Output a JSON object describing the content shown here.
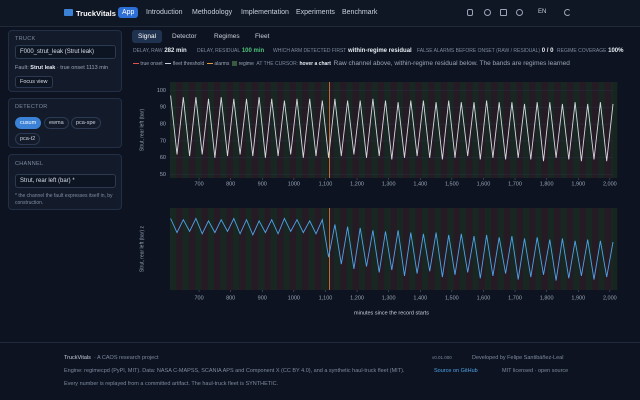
{
  "header": {
    "brand": "TruckVitals",
    "nav": [
      "App",
      "Introduction",
      "Methodology",
      "Implementation",
      "Experiments",
      "Benchmark"
    ],
    "lang": "EN"
  },
  "sidebar": {
    "truck": {
      "heading": "TRUCK",
      "select": "F000_strut_leak (Strut leak)",
      "fault_label": "Fault:",
      "fault_name": "Strut leak",
      "fault_rest": "· true onset 1113 min",
      "button": "Focus view"
    },
    "detector": {
      "heading": "DETECTOR",
      "options": [
        "cusum",
        "ewma",
        "pca-spe",
        "pca-t2"
      ]
    },
    "channel": {
      "heading": "CHANNEL",
      "select": "Strut, rear left (bar) *",
      "note": "* the channel the fault expresses itself in, by construction."
    }
  },
  "tabs": [
    "Signal",
    "Detector",
    "Regimes",
    "Fleet"
  ],
  "stats": [
    {
      "label": "DELAY, RAW",
      "value": "282 min"
    },
    {
      "label": "DELAY, RESIDUAL",
      "value": "100 min"
    },
    {
      "label": "WHICH ARM DETECTED FIRST",
      "value": "within-regime residual"
    },
    {
      "label": "FALSE ALARMS BEFORE ONSET (RAW / RESIDUAL)",
      "value": "0 / 0"
    },
    {
      "label": "REGIME COVERAGE",
      "value": "100%"
    }
  ],
  "legend": [
    "true onset",
    "fleet threshold",
    "alarms",
    "regime"
  ],
  "cursor": {
    "label": "AT THE CURSOR:",
    "value": "hover a chart"
  },
  "caption": "Raw channel above, within-regime residual below. The bands are regimes learned",
  "chart_data": [
    {
      "type": "line",
      "ylabel": "Strut, rear left (bar)",
      "color": "#d3d7de",
      "onset_x": 1113,
      "x": [
        610,
        630,
        650,
        670,
        690,
        710,
        730,
        750,
        770,
        790,
        810,
        830,
        850,
        870,
        890,
        910,
        930,
        950,
        970,
        990,
        1010,
        1030,
        1050,
        1070,
        1090,
        1110,
        1130,
        1150,
        1170,
        1190,
        1210,
        1230,
        1250,
        1270,
        1290,
        1310,
        1330,
        1350,
        1370,
        1390,
        1410,
        1430,
        1450,
        1470,
        1490,
        1510,
        1530,
        1550,
        1570,
        1590,
        1610,
        1630,
        1650,
        1670,
        1690,
        1710,
        1730,
        1750,
        1770,
        1790,
        1810,
        1830,
        1850,
        1870,
        1890,
        1910,
        1930,
        1950,
        1970,
        1990,
        2010
      ],
      "values": [
        97,
        62,
        96,
        61,
        96,
        62,
        95,
        60,
        96,
        61,
        95,
        62,
        95,
        61,
        96,
        60,
        95,
        61,
        94,
        62,
        95,
        60,
        95,
        61,
        94,
        60,
        95,
        61,
        94,
        62,
        94,
        60,
        95,
        61,
        94,
        59,
        93,
        60,
        94,
        61,
        94,
        60,
        93,
        59,
        94,
        60,
        93,
        61,
        93,
        59,
        94,
        60,
        93,
        59,
        93,
        60,
        92,
        59,
        93,
        58,
        93,
        60,
        92,
        59,
        93,
        58,
        92,
        59,
        93,
        58,
        92
      ],
      "xlim": [
        608,
        2010
      ],
      "ylim": [
        48,
        105
      ],
      "xticks": [
        700,
        800,
        900,
        1000,
        {
          "value": 1100,
          "label": "1,100"
        },
        {
          "value": 1200,
          "label": "1,200"
        },
        {
          "value": 1300,
          "label": "1,300"
        },
        {
          "value": 1400,
          "label": "1,400"
        },
        {
          "value": 1500,
          "label": "1,500"
        },
        {
          "value": 1600,
          "label": "1,600"
        },
        {
          "value": 1700,
          "label": "1,700"
        },
        {
          "value": 1800,
          "label": "1,800"
        },
        {
          "value": 1900,
          "label": "1,900"
        },
        {
          "value": 2000,
          "label": "2,000"
        }
      ],
      "yticks": [
        50,
        60,
        70,
        80,
        90,
        100
      ]
    },
    {
      "type": "line",
      "ylabel": "Strut, rear left (bar) z",
      "xlabel": "minutes since the record starts",
      "color": "#4ea3e8",
      "onset_x": 1113,
      "x": [
        610,
        630,
        650,
        670,
        690,
        710,
        730,
        750,
        770,
        790,
        810,
        830,
        850,
        870,
        890,
        910,
        930,
        950,
        970,
        990,
        1010,
        1030,
        1050,
        1070,
        1090,
        1110,
        1130,
        1150,
        1170,
        1190,
        1210,
        1230,
        1250,
        1270,
        1290,
        1310,
        1330,
        1350,
        1370,
        1390,
        1410,
        1430,
        1450,
        1470,
        1490,
        1510,
        1530,
        1550,
        1570,
        1590,
        1610,
        1630,
        1650,
        1670,
        1690,
        1710,
        1730,
        1750,
        1770,
        1790,
        1810,
        1830,
        1850,
        1870,
        1890,
        1910,
        1930,
        1950,
        1970,
        1990,
        2010
      ],
      "values": [
        0.1,
        -1.1,
        0,
        -1,
        0.1,
        -1.2,
        -0.1,
        -1.1,
        0,
        -1,
        0.1,
        -1.2,
        0,
        -1.3,
        -0.1,
        -1.1,
        0,
        -1.2,
        0.1,
        -1,
        0,
        -1.1,
        -0.1,
        -1.2,
        0,
        -3.2,
        -0.4,
        -3.8,
        -0.6,
        -4.2,
        -0.7,
        -4,
        -0.9,
        -4.5,
        -1,
        -4.3,
        -0.9,
        -4.8,
        -1.1,
        -4.6,
        -1.2,
        -4.4,
        -1.1,
        -4.9,
        -1.3,
        -4.7,
        -1.2,
        -4.5,
        -1.4,
        -5,
        -1.3,
        -4.8,
        -1.5,
        -4.6,
        -1.4,
        -5.1,
        -1.6,
        -4.9,
        -1.5,
        -4.7,
        -1.7,
        -5.2,
        -1.6,
        -5,
        -1.8,
        -4.8,
        -1.7,
        -5.1,
        -1.8,
        -4.9,
        -1.9
      ],
      "xlim": [
        608,
        2010
      ],
      "ylim": [
        -6,
        1
      ],
      "xticks": [
        700,
        800,
        900,
        1000,
        {
          "value": 1100,
          "label": "1,100"
        },
        {
          "value": 1200,
          "label": "1,200"
        },
        {
          "value": 1300,
          "label": "1,300"
        },
        {
          "value": 1400,
          "label": "1,400"
        },
        {
          "value": 1500,
          "label": "1,500"
        },
        {
          "value": 1600,
          "label": "1,600"
        },
        {
          "value": 1700,
          "label": "1,700"
        },
        {
          "value": 1800,
          "label": "1,800"
        },
        {
          "value": 1900,
          "label": "1,900"
        },
        {
          "value": 2000,
          "label": "2,000"
        }
      ]
    }
  ],
  "footer": {
    "brand": "TruckVitals",
    "project": "· A CAOS research project",
    "engine": "Engine: regimecpd (PyPI, MIT). Data: NASA C-MAPSS, SCANIA APS and Component X (CC BY 4.0), and a synthetic haul-truck fleet (MIT).",
    "source": "Source on GitHub",
    "license": "MIT licensed · open source",
    "note": "Every number is replayed from a committed artifact. The haul-truck fleet is SYNTHETIC.",
    "version": "v0.01.000",
    "dev": "Developed by Felipe Santibáñez-Leal"
  }
}
